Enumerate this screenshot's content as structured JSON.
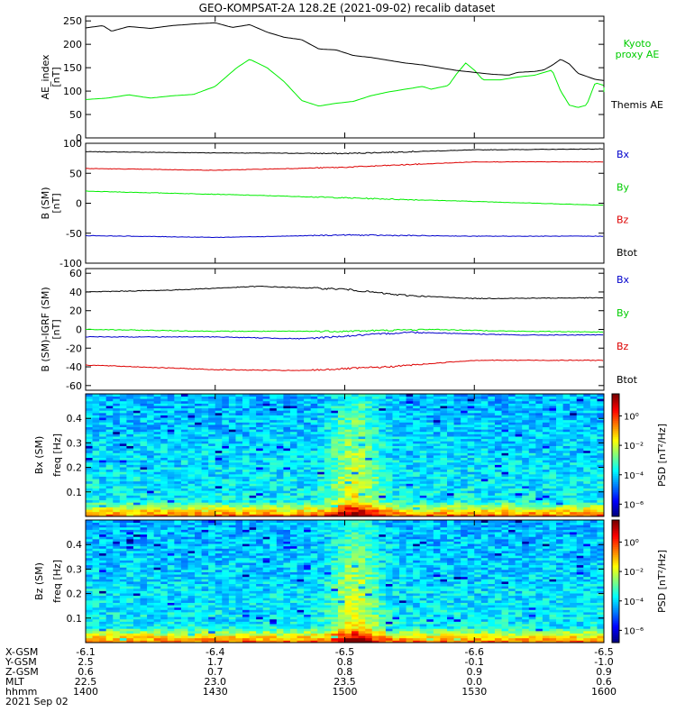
{
  "title": "GEO-KOMPSAT-2A 128.2E (2021-09-02) recalib dataset",
  "chart_data": [
    {
      "type": "line",
      "ylabel": "AE_index",
      "yunit": "[nT]",
      "ylim": [
        0,
        260
      ],
      "yticks": [
        0,
        50,
        100,
        150,
        200,
        250
      ],
      "x": [
        "1400",
        "1430",
        "1500",
        "1530",
        "1600"
      ],
      "x_minutes": [
        0,
        120
      ],
      "series": [
        {
          "name": "Kyoto proxy AE",
          "color": "#00ee00",
          "points": [
            [
              0,
              82
            ],
            [
              5,
              85
            ],
            [
              10,
              92
            ],
            [
              15,
              85
            ],
            [
              20,
              90
            ],
            [
              25,
              93
            ],
            [
              30,
              110
            ],
            [
              35,
              150
            ],
            [
              38,
              168
            ],
            [
              42,
              150
            ],
            [
              46,
              120
            ],
            [
              50,
              80
            ],
            [
              54,
              68
            ],
            [
              58,
              74
            ],
            [
              62,
              78
            ],
            [
              66,
              90
            ],
            [
              70,
              98
            ],
            [
              74,
              104
            ],
            [
              78,
              110
            ],
            [
              80,
              104
            ],
            [
              84,
              112
            ],
            [
              86,
              138
            ],
            [
              88,
              160
            ],
            [
              90,
              145
            ],
            [
              92,
              124
            ],
            [
              96,
              124
            ],
            [
              100,
              130
            ],
            [
              104,
              134
            ],
            [
              108,
              145
            ],
            [
              110,
              100
            ],
            [
              112,
              70
            ],
            [
              114,
              65
            ],
            [
              116,
              70
            ],
            [
              118,
              118
            ],
            [
              120,
              112
            ],
            [
              124,
              112
            ],
            [
              126,
              100
            ],
            [
              128,
              98
            ]
          ]
        },
        {
          "name": "Themis AE",
          "color": "#000000",
          "points": [
            [
              0,
              235
            ],
            [
              4,
              240
            ],
            [
              6,
              228
            ],
            [
              10,
              238
            ],
            [
              15,
              234
            ],
            [
              20,
              240
            ],
            [
              26,
              244
            ],
            [
              30,
              246
            ],
            [
              34,
              236
            ],
            [
              38,
              242
            ],
            [
              42,
              226
            ],
            [
              46,
              215
            ],
            [
              50,
              210
            ],
            [
              54,
              190
            ],
            [
              58,
              188
            ],
            [
              62,
              176
            ],
            [
              66,
              172
            ],
            [
              70,
              166
            ],
            [
              74,
              160
            ],
            [
              78,
              156
            ],
            [
              82,
              150
            ],
            [
              86,
              144
            ],
            [
              90,
              140
            ],
            [
              94,
              136
            ],
            [
              98,
              134
            ],
            [
              100,
              140
            ],
            [
              104,
              142
            ],
            [
              106,
              145
            ],
            [
              108,
              155
            ],
            [
              110,
              168
            ],
            [
              112,
              158
            ],
            [
              114,
              138
            ],
            [
              118,
              125
            ],
            [
              122,
              120
            ],
            [
              126,
              112
            ],
            [
              128,
              108
            ]
          ]
        }
      ],
      "legend": [
        {
          "label_lines": [
            "Kyoto",
            "proxy AE"
          ],
          "color": "#00cc00"
        },
        {
          "label_lines": [
            "Themis AE"
          ],
          "color": "#000000"
        }
      ]
    },
    {
      "type": "line",
      "ylabel": "B (SM)",
      "yunit": "[nT]",
      "ylim": [
        -100,
        100
      ],
      "yticks": [
        -100,
        -50,
        0,
        50,
        100
      ],
      "series": [
        {
          "name": "Bx",
          "color": "#000000",
          "points": [
            [
              0,
              86
            ],
            [
              30,
              84
            ],
            [
              60,
              83
            ],
            [
              90,
              89
            ],
            [
              128,
              91
            ]
          ]
        },
        {
          "name": "By",
          "color": "#00ee00",
          "points": [
            [
              0,
              20
            ],
            [
              30,
              15
            ],
            [
              60,
              9
            ],
            [
              90,
              3
            ],
            [
              128,
              -5
            ]
          ]
        },
        {
          "name": "Bz",
          "color": "#dd0000",
          "points": [
            [
              0,
              58
            ],
            [
              30,
              55
            ],
            [
              60,
              60
            ],
            [
              90,
              69
            ],
            [
              128,
              69
            ]
          ]
        },
        {
          "name": "Btot",
          "color": "#0000cc",
          "points": [
            [
              0,
              -54
            ],
            [
              30,
              -57
            ],
            [
              60,
              -53
            ],
            [
              90,
              -55
            ],
            [
              128,
              -55
            ]
          ]
        }
      ],
      "legend": [
        {
          "label_lines": [
            "Bx"
          ],
          "color": "#0000cc"
        },
        {
          "label_lines": [
            "By"
          ],
          "color": "#00cc00"
        },
        {
          "label_lines": [
            "Bz"
          ],
          "color": "#dd0000"
        },
        {
          "label_lines": [
            "Btot"
          ],
          "color": "#000000"
        }
      ]
    },
    {
      "type": "line",
      "ylabel": "B (SM)-IGRF (SM)",
      "yunit": "[nT]",
      "ylim": [
        -65,
        65
      ],
      "yticks": [
        -60,
        -40,
        -20,
        0,
        20,
        40,
        60
      ],
      "series": [
        {
          "name": "Bx",
          "color": "#000000",
          "points": [
            [
              0,
              40
            ],
            [
              20,
              42
            ],
            [
              40,
              46
            ],
            [
              60,
              43
            ],
            [
              72,
              37
            ],
            [
              80,
              35
            ],
            [
              90,
              33
            ],
            [
              128,
              34
            ]
          ]
        },
        {
          "name": "By",
          "color": "#00ee00",
          "points": [
            [
              0,
              0
            ],
            [
              30,
              -2
            ],
            [
              60,
              -2
            ],
            [
              80,
              0
            ],
            [
              100,
              -2
            ],
            [
              128,
              -3
            ]
          ]
        },
        {
          "name": "Bz",
          "color": "#dd0000",
          "points": [
            [
              0,
              -38
            ],
            [
              30,
              -43
            ],
            [
              50,
              -44
            ],
            [
              70,
              -40
            ],
            [
              90,
              -33
            ],
            [
              128,
              -33
            ]
          ]
        },
        {
          "name": "Btot",
          "color": "#0000cc",
          "points": [
            [
              0,
              -8
            ],
            [
              30,
              -8
            ],
            [
              50,
              -10
            ],
            [
              75,
              -3
            ],
            [
              100,
              -6
            ],
            [
              128,
              -6
            ]
          ]
        }
      ],
      "legend": [
        {
          "label_lines": [
            "Bx"
          ],
          "color": "#0000cc"
        },
        {
          "label_lines": [
            "By"
          ],
          "color": "#00cc00"
        },
        {
          "label_lines": [
            "Bz"
          ],
          "color": "#dd0000"
        },
        {
          "label_lines": [
            "Btot"
          ],
          "color": "#000000"
        }
      ]
    },
    {
      "type": "heatmap",
      "ylabel": "Bx (SM)",
      "yunit_label": "freq [Hz]",
      "ylim": [
        0,
        0.5
      ],
      "yticks": [
        "0.1",
        "0.2",
        "0.3",
        "0.4"
      ],
      "colorbar": {
        "label": "PSD [nT²/Hz]",
        "ticks": [
          "10⁰",
          "10⁻²",
          "10⁻⁴",
          "10⁻⁶"
        ]
      },
      "peak_times": [
        "1500"
      ]
    },
    {
      "type": "heatmap",
      "ylabel": "Bz (SM)",
      "yunit_label": "freq [Hz]",
      "ylim": [
        0,
        0.5
      ],
      "yticks": [
        "0.1",
        "0.2",
        "0.3",
        "0.4"
      ],
      "colorbar": {
        "label": "PSD [nT²/Hz]",
        "ticks": [
          "10⁰",
          "10⁻²",
          "10⁻⁴",
          "10⁻⁶"
        ]
      },
      "peak_times": [
        "1500"
      ]
    }
  ],
  "xaxis_table": {
    "rows": [
      {
        "label": "X-GSM",
        "values": [
          "-6.1",
          "-6.4",
          "-6.5",
          "-6.6",
          "-6.5"
        ]
      },
      {
        "label": "Y-GSM",
        "values": [
          "2.5",
          "1.7",
          "0.8",
          "-0.1",
          "-1.0"
        ]
      },
      {
        "label": "Z-GSM",
        "values": [
          "0.6",
          "0.7",
          "0.8",
          "0.9",
          "0.9"
        ]
      },
      {
        "label": "MLT",
        "values": [
          "22.5",
          "23.0",
          "23.5",
          "0.0",
          "0.6"
        ]
      },
      {
        "label": "hhmm",
        "values": [
          "1400",
          "1430",
          "1500",
          "1530",
          "1600"
        ]
      }
    ],
    "date": "2021 Sep 02"
  }
}
